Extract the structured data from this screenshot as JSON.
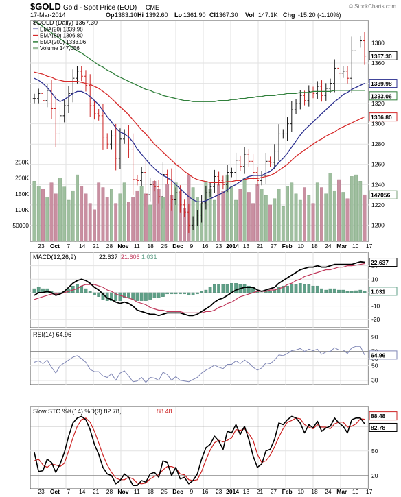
{
  "header": {
    "symbol": "$GOLD",
    "name": "Gold - Spot Price (EOD)",
    "exchange": "CME",
    "date": "17-Mar-2014",
    "op_label": "Op",
    "op": "1383.10",
    "hi_label": "Hi",
    "hi": "1392.60",
    "lo_label": "Lo",
    "lo": "1361.90",
    "cl_label": "Cl",
    "cl": "1367.30",
    "vol_label": "Vol",
    "vol": "147.1K",
    "chg_label": "Chg",
    "chg": "-15.20 (-1.10%)",
    "watermark": "© StockCharts.com"
  },
  "colors": {
    "ema20": "#2b2f8f",
    "ema50": "#d62a2a",
    "ema200": "#2f7f3a",
    "volume_down": "#c98fa1",
    "volume_up": "#9fbf9f",
    "up_bar": "#111111",
    "down_bar": "#cc2222",
    "macd_line": "#000000",
    "signal_line": "#c0385b",
    "histogram": "#5f9f87",
    "rsi_line": "#7f86b5",
    "sto_k": "#000000",
    "sto_d": "#cc2222"
  },
  "chart_data": {
    "type": "line",
    "x_labels": [
      "23",
      "Oct",
      "7",
      "14",
      "21",
      "28",
      "Nov",
      "11",
      "18",
      "25",
      "Dec",
      "9",
      "16",
      "23",
      "2014",
      "13",
      "21",
      "27",
      "Feb",
      "10",
      "18",
      "24",
      "Mar",
      "10",
      "17"
    ],
    "price": {
      "legend": [
        {
          "name": "$GOLD (Daily) 1367.30"
        },
        {
          "name": "EMA(20) 1339.98",
          "color_key": "ema20"
        },
        {
          "name": "EMA(50) 1306.80",
          "color_key": "ema50"
        },
        {
          "name": "EMA(200) 1333.06",
          "color_key": "ema200"
        },
        {
          "name": "Volume 147,056",
          "color_key": "volume_up"
        }
      ],
      "ylim": [
        1184,
        1402
      ],
      "y_ticks": [
        1200,
        1220,
        1240,
        1260,
        1280,
        1300,
        1320,
        1340,
        1360,
        1380
      ],
      "close": [
        1325,
        1330,
        1323,
        1333,
        1315,
        1290,
        1308,
        1318,
        1330,
        1345,
        1352,
        1347,
        1338,
        1318,
        1310,
        1308,
        1286,
        1280,
        1288,
        1266,
        1285,
        1290,
        1275,
        1245,
        1244,
        1252,
        1230,
        1240,
        1238,
        1228,
        1250,
        1245,
        1225,
        1232,
        1220,
        1213,
        1200,
        1204,
        1210,
        1222,
        1232,
        1238,
        1248,
        1244,
        1240,
        1252,
        1252,
        1264,
        1258,
        1270,
        1263,
        1252,
        1244,
        1249,
        1263,
        1262,
        1273,
        1290,
        1290,
        1300,
        1314,
        1320,
        1328,
        1323,
        1332,
        1330,
        1337,
        1328,
        1335,
        1340,
        1355,
        1350,
        1352,
        1345,
        1372,
        1380,
        1382,
        1367
      ],
      "ema20": [
        1345,
        1343,
        1340,
        1336,
        1331,
        1325,
        1322,
        1324,
        1327,
        1330,
        1332,
        1332,
        1330,
        1327,
        1323,
        1319,
        1313,
        1307,
        1302,
        1296,
        1292,
        1290,
        1287,
        1282,
        1275,
        1270,
        1265,
        1260,
        1256,
        1252,
        1249,
        1247,
        1244,
        1240,
        1236,
        1232,
        1228,
        1225,
        1223,
        1223,
        1224,
        1226,
        1228,
        1230,
        1232,
        1235,
        1238,
        1240,
        1243,
        1246,
        1248,
        1249,
        1249,
        1249,
        1251,
        1253,
        1257,
        1262,
        1266,
        1271,
        1277,
        1283,
        1289,
        1294,
        1298,
        1302,
        1306,
        1310,
        1314,
        1318,
        1322,
        1325,
        1329,
        1331,
        1334,
        1336,
        1338,
        1340
      ],
      "ema50": [
        1351,
        1350,
        1349,
        1347,
        1346,
        1344,
        1343,
        1342,
        1342,
        1342,
        1342,
        1341,
        1340,
        1339,
        1337,
        1335,
        1332,
        1329,
        1325,
        1321,
        1317,
        1313,
        1309,
        1304,
        1299,
        1294,
        1290,
        1285,
        1280,
        1276,
        1272,
        1268,
        1264,
        1260,
        1257,
        1253,
        1250,
        1247,
        1245,
        1244,
        1243,
        1242,
        1242,
        1242,
        1242,
        1243,
        1243,
        1244,
        1244,
        1245,
        1246,
        1246,
        1246,
        1247,
        1248,
        1249,
        1251,
        1254,
        1257,
        1260,
        1264,
        1268,
        1271,
        1274,
        1277,
        1280,
        1283,
        1285,
        1288,
        1290,
        1292,
        1295,
        1297,
        1299,
        1301,
        1303,
        1305,
        1307
      ],
      "ema200": [
        1402,
        1399,
        1396,
        1393,
        1390,
        1387,
        1384,
        1381,
        1378,
        1375,
        1372,
        1370,
        1367,
        1364,
        1361,
        1358,
        1356,
        1353,
        1351,
        1348,
        1346,
        1344,
        1342,
        1340,
        1338,
        1336,
        1334,
        1333,
        1331,
        1330,
        1328,
        1327,
        1326,
        1325,
        1324,
        1323,
        1323,
        1322,
        1322,
        1322,
        1322,
        1322,
        1322,
        1323,
        1323,
        1323,
        1324,
        1324,
        1325,
        1325,
        1326,
        1326,
        1327,
        1327,
        1328,
        1328,
        1328,
        1329,
        1329,
        1330,
        1330,
        1330,
        1331,
        1331,
        1331,
        1332,
        1332,
        1332,
        1332,
        1332,
        1333,
        1333,
        1333,
        1333,
        1333,
        1333,
        1333,
        1333
      ],
      "volume_ticks": [
        "250K",
        "200K",
        "150K",
        "100K",
        "50000"
      ],
      "volume": [
        190,
        175,
        165,
        140,
        185,
        150,
        200,
        172,
        130,
        160,
        210,
        175,
        150,
        120,
        100,
        185,
        170,
        140,
        165,
        120,
        150,
        185,
        125,
        140,
        160,
        175,
        150,
        115,
        190,
        165,
        140,
        180,
        145,
        185,
        160,
        105,
        210,
        170,
        140,
        120,
        190,
        165,
        130,
        180,
        160,
        210,
        175,
        130,
        165,
        200,
        155,
        120,
        180,
        165,
        145,
        115,
        135,
        165,
        110,
        175,
        185,
        150,
        130,
        170,
        145,
        120,
        185,
        170,
        150,
        215,
        160,
        195,
        155,
        135,
        205,
        210,
        190,
        147
      ]
    },
    "macd": {
      "legend_prefix": "MACD(12,26,9)",
      "legend_macd": "22.637",
      "legend_signal": "21.606",
      "legend_hist": "1.031",
      "ylim": [
        -26,
        30
      ],
      "y_ticks": [
        -20,
        -10,
        0,
        10,
        20
      ],
      "macd": [
        -2,
        0,
        0,
        1,
        0,
        -2,
        -1,
        1,
        4,
        7,
        9,
        10,
        9,
        7,
        4,
        2,
        -1,
        -4,
        -5,
        -7,
        -8,
        -7,
        -8,
        -10,
        -13,
        -14,
        -15,
        -16,
        -16,
        -17,
        -16,
        -15,
        -15,
        -15,
        -15,
        -16,
        -17,
        -17,
        -16,
        -14,
        -12,
        -10,
        -7,
        -5,
        -4,
        -2,
        0,
        2,
        3,
        4,
        4,
        4,
        2,
        1,
        2,
        3,
        4,
        7,
        9,
        11,
        13,
        15,
        17,
        18,
        19,
        19,
        20,
        19,
        19,
        20,
        21,
        21,
        21,
        21,
        21,
        22,
        23,
        22.6
      ],
      "signal": [
        -5,
        -4,
        -3,
        -2,
        -1,
        -1,
        -1,
        0,
        1,
        2,
        3,
        5,
        6,
        6,
        6,
        5,
        4,
        2,
        1,
        -1,
        -2,
        -3,
        -4,
        -5,
        -7,
        -8,
        -9,
        -11,
        -12,
        -13,
        -13,
        -14,
        -14,
        -14,
        -14,
        -15,
        -15,
        -15,
        -15,
        -15,
        -14,
        -14,
        -13,
        -11,
        -10,
        -8,
        -7,
        -5,
        -3,
        -2,
        -1,
        0,
        1,
        1,
        1,
        2,
        2,
        3,
        4,
        6,
        7,
        9,
        10,
        12,
        13,
        14,
        15,
        16,
        17,
        17,
        18,
        19,
        19,
        20,
        20,
        20.5,
        21,
        21.6
      ],
      "histogram": [
        3,
        4,
        3,
        3,
        1,
        -1,
        0,
        1,
        3,
        5,
        6,
        5,
        3,
        1,
        -2,
        -3,
        -5,
        -6,
        -6,
        -6,
        -6,
        -4,
        -4,
        -5,
        -6,
        -6,
        -6,
        -5,
        -4,
        -4,
        -3,
        -1,
        -1,
        -1,
        -1,
        -1,
        -2,
        -2,
        -1,
        1,
        2,
        4,
        6,
        6,
        6,
        6,
        7,
        7,
        6,
        6,
        5,
        4,
        1,
        0,
        1,
        1,
        2,
        4,
        5,
        5,
        6,
        6,
        7,
        6,
        6,
        5,
        5,
        3,
        2,
        3,
        3,
        2,
        2,
        1,
        1,
        1.5,
        2,
        1.03
      ]
    },
    "rsi": {
      "legend": "RSI(14) 64.96",
      "ylim": [
        24,
        100
      ],
      "y_ticks": [
        30,
        50,
        60,
        70,
        90
      ],
      "current": "64.96",
      "values": [
        55,
        57,
        53,
        58,
        48,
        40,
        50,
        54,
        58,
        62,
        64,
        60,
        55,
        45,
        42,
        42,
        36,
        34,
        39,
        30,
        40,
        43,
        36,
        28,
        29,
        34,
        27,
        34,
        33,
        30,
        41,
        38,
        30,
        35,
        30,
        29,
        28,
        31,
        34,
        40,
        44,
        47,
        51,
        48,
        46,
        52,
        52,
        57,
        53,
        58,
        54,
        48,
        44,
        47,
        54,
        53,
        58,
        65,
        64,
        67,
        71,
        72,
        74,
        70,
        73,
        71,
        73,
        66,
        69,
        70,
        75,
        72,
        72,
        67,
        75,
        77,
        77,
        65
      ]
    },
    "stochastic": {
      "legend_prefix": "Slow STO %K(14) %D(3)",
      "legend_k": "82.78",
      "legend_d": "88.48",
      "ylim": [
        4,
        104
      ],
      "y_ticks": [
        20,
        50,
        80
      ],
      "k": [
        48,
        25,
        26,
        40,
        36,
        24,
        34,
        48,
        68,
        84,
        90,
        92,
        88,
        76,
        58,
        46,
        30,
        22,
        20,
        10,
        14,
        22,
        18,
        8,
        8,
        14,
        12,
        22,
        24,
        18,
        38,
        36,
        20,
        30,
        16,
        18,
        10,
        14,
        22,
        40,
        54,
        58,
        68,
        62,
        52,
        74,
        72,
        82,
        70,
        80,
        64,
        44,
        30,
        34,
        50,
        52,
        64,
        84,
        82,
        88,
        92,
        90,
        84,
        72,
        82,
        78,
        86,
        74,
        78,
        80,
        90,
        84,
        80,
        72,
        88,
        90,
        90,
        83
      ],
      "d": [
        38,
        40,
        33,
        30,
        34,
        33,
        31,
        35,
        50,
        66,
        80,
        88,
        90,
        85,
        74,
        60,
        45,
        33,
        24,
        17,
        15,
        15,
        18,
        16,
        11,
        10,
        11,
        16,
        19,
        21,
        27,
        31,
        31,
        29,
        22,
        21,
        15,
        14,
        15,
        25,
        39,
        51,
        60,
        63,
        61,
        63,
        66,
        76,
        75,
        77,
        71,
        63,
        46,
        36,
        38,
        45,
        55,
        67,
        77,
        85,
        87,
        90,
        89,
        82,
        79,
        77,
        82,
        79,
        79,
        77,
        83,
        85,
        85,
        79,
        80,
        83,
        89,
        88.48
      ]
    }
  }
}
